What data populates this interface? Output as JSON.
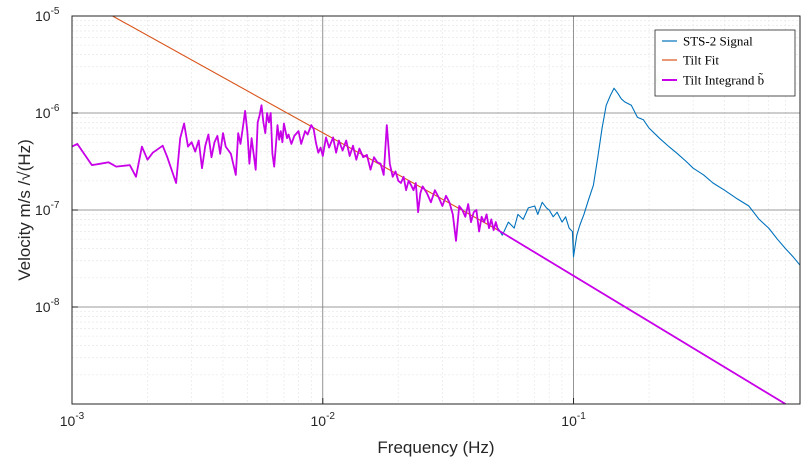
{
  "chart_data": {
    "type": "line",
    "xlabel": "Frequency (Hz)",
    "ylabel": "Velocity m/s /√(Hz)",
    "xscale": "log",
    "yscale": "log",
    "xlim": [
      0.001,
      0.8
    ],
    "ylim": [
      1e-09,
      1e-05
    ],
    "x_ticks": [
      {
        "value": 0.001,
        "base": "10",
        "exp": "-3"
      },
      {
        "value": 0.01,
        "base": "10",
        "exp": "-2"
      },
      {
        "value": 0.1,
        "base": "10",
        "exp": "-1"
      }
    ],
    "y_ticks": [
      {
        "value": 1e-08,
        "base": "10",
        "exp": "-8"
      },
      {
        "value": 1e-07,
        "base": "10",
        "exp": "-7"
      },
      {
        "value": 1e-06,
        "base": "10",
        "exp": "-6"
      },
      {
        "value": 1e-05,
        "base": "10",
        "exp": "-5"
      }
    ],
    "grid": true,
    "legend_position": "top-right",
    "series": [
      {
        "name": "STS-2 Signal",
        "color": "#0072BD",
        "points": [
          [
            0.05,
            6.5e-08
          ],
          [
            0.052,
            5.5e-08
          ],
          [
            0.055,
            7.5e-08
          ],
          [
            0.058,
            6.5e-08
          ],
          [
            0.06,
            9e-08
          ],
          [
            0.063,
            8e-08
          ],
          [
            0.066,
            1.05e-07
          ],
          [
            0.07,
            1.1e-07
          ],
          [
            0.072,
            9e-08
          ],
          [
            0.075,
            1.2e-07
          ],
          [
            0.078,
            1.05e-07
          ],
          [
            0.08,
            1e-07
          ],
          [
            0.083,
            8.5e-08
          ],
          [
            0.086,
            9.5e-08
          ],
          [
            0.09,
            7.5e-08
          ],
          [
            0.093,
            8.5e-08
          ],
          [
            0.096,
            6.5e-08
          ],
          [
            0.099,
            6e-08
          ],
          [
            0.1,
            3.3e-08
          ],
          [
            0.103,
            5.5e-08
          ],
          [
            0.106,
            7e-08
          ],
          [
            0.11,
            9e-08
          ],
          [
            0.115,
            1.3e-07
          ],
          [
            0.12,
            1.8e-07
          ],
          [
            0.125,
            3.5e-07
          ],
          [
            0.13,
            7e-07
          ],
          [
            0.135,
            1.2e-06
          ],
          [
            0.14,
            1.5e-06
          ],
          [
            0.145,
            1.8e-06
          ],
          [
            0.15,
            1.6e-06
          ],
          [
            0.155,
            1.4e-06
          ],
          [
            0.16,
            1.3e-06
          ],
          [
            0.17,
            1.2e-06
          ],
          [
            0.18,
            9e-07
          ],
          [
            0.19,
            8.5e-07
          ],
          [
            0.2,
            7e-07
          ],
          [
            0.22,
            5.5e-07
          ],
          [
            0.24,
            4.5e-07
          ],
          [
            0.26,
            3.8e-07
          ],
          [
            0.28,
            3.2e-07
          ],
          [
            0.3,
            2.7e-07
          ],
          [
            0.33,
            2.3e-07
          ],
          [
            0.36,
            1.9e-07
          ],
          [
            0.4,
            1.6e-07
          ],
          [
            0.45,
            1.3e-07
          ],
          [
            0.5,
            1.1e-07
          ],
          [
            0.55,
            8e-08
          ],
          [
            0.6,
            6.5e-08
          ],
          [
            0.65,
            5e-08
          ],
          [
            0.7,
            4e-08
          ],
          [
            0.75,
            3.3e-08
          ],
          [
            0.8,
            2.7e-08
          ]
        ]
      },
      {
        "name": "Tilt Fit",
        "color": "#D95319",
        "points": [
          [
            0.00145,
            1e-05
          ],
          [
            0.05,
            6.2e-08
          ]
        ]
      },
      {
        "name": "Tilt Integrand b̃",
        "color": "#C800E8",
        "points": [
          [
            0.001,
            4.5e-07
          ],
          [
            0.00105,
            4.8e-07
          ],
          [
            0.0012,
            2.9e-07
          ],
          [
            0.0013,
            3e-07
          ],
          [
            0.0014,
            3.1e-07
          ],
          [
            0.0015,
            2.8e-07
          ],
          [
            0.0017,
            2.9e-07
          ],
          [
            0.0018,
            2.2e-07
          ],
          [
            0.0019,
            4.5e-07
          ],
          [
            0.002,
            3.3e-07
          ],
          [
            0.0021,
            3.9e-07
          ],
          [
            0.0023,
            4.6e-07
          ],
          [
            0.0024,
            3.5e-07
          ],
          [
            0.0026,
            1.9e-07
          ],
          [
            0.0027,
            5.5e-07
          ],
          [
            0.0028,
            7.8e-07
          ],
          [
            0.0029,
            4.5e-07
          ],
          [
            0.003,
            5e-07
          ],
          [
            0.0031,
            4e-07
          ],
          [
            0.0032,
            5.2e-07
          ],
          [
            0.0033,
            2.7e-07
          ],
          [
            0.0034,
            4.6e-07
          ],
          [
            0.0035,
            6e-07
          ],
          [
            0.0036,
            3.5e-07
          ],
          [
            0.0037,
            5e-07
          ],
          [
            0.0038,
            5.8e-07
          ],
          [
            0.0039,
            3.8e-07
          ],
          [
            0.004,
            6.2e-07
          ],
          [
            0.0041,
            4.5e-07
          ],
          [
            0.0043,
            3.8e-07
          ],
          [
            0.0045,
            2.3e-07
          ],
          [
            0.0046,
            6.2e-07
          ],
          [
            0.0047,
            4.8e-07
          ],
          [
            0.0048,
            7e-07
          ],
          [
            0.0049,
            1.05e-06
          ],
          [
            0.005,
            6.5e-07
          ],
          [
            0.0051,
            3e-07
          ],
          [
            0.0052,
            5.5e-07
          ],
          [
            0.0054,
            2.6e-07
          ],
          [
            0.0055,
            8e-07
          ],
          [
            0.0056,
            9.5e-07
          ],
          [
            0.0057,
            1.2e-06
          ],
          [
            0.0058,
            8e-07
          ],
          [
            0.0059,
            6.2e-07
          ],
          [
            0.006,
            1e-06
          ],
          [
            0.0061,
            8e-07
          ],
          [
            0.0062,
            1e-06
          ],
          [
            0.0063,
            3.8e-07
          ],
          [
            0.0064,
            2.8e-07
          ],
          [
            0.0066,
            7.5e-07
          ],
          [
            0.0067,
            5.3e-07
          ],
          [
            0.0068,
            6.5e-07
          ],
          [
            0.0069,
            5e-07
          ],
          [
            0.007,
            7.8e-07
          ],
          [
            0.0072,
            5.5e-07
          ],
          [
            0.0073,
            6e-07
          ],
          [
            0.0075,
            4.8e-07
          ],
          [
            0.0077,
            5.8e-07
          ],
          [
            0.008,
            6.5e-07
          ],
          [
            0.0082,
            4.8e-07
          ],
          [
            0.0085,
            6.5e-07
          ],
          [
            0.0087,
            6e-07
          ],
          [
            0.009,
            7.5e-07
          ],
          [
            0.0092,
            6.8e-07
          ],
          [
            0.0094,
            4.9e-07
          ],
          [
            0.0096,
            3.9e-07
          ],
          [
            0.0098,
            4.4e-07
          ],
          [
            0.01,
            3.6e-07
          ],
          [
            0.0103,
            5.6e-07
          ],
          [
            0.0106,
            4.4e-07
          ],
          [
            0.011,
            5.6e-07
          ],
          [
            0.0113,
            3.9e-07
          ],
          [
            0.0116,
            5.2e-07
          ],
          [
            0.012,
            4.1e-07
          ],
          [
            0.0124,
            5.2e-07
          ],
          [
            0.0128,
            3.6e-07
          ],
          [
            0.0132,
            4.6e-07
          ],
          [
            0.0136,
            3.3e-07
          ],
          [
            0.014,
            4.3e-07
          ],
          [
            0.0145,
            3.5e-07
          ],
          [
            0.015,
            3.7e-07
          ],
          [
            0.0155,
            2.6e-07
          ],
          [
            0.016,
            3.5e-07
          ],
          [
            0.0165,
            3.1e-07
          ],
          [
            0.017,
            3e-07
          ],
          [
            0.0175,
            2.3e-07
          ],
          [
            0.018,
            7.5e-07
          ],
          [
            0.0185,
            3e-07
          ],
          [
            0.019,
            2.2e-07
          ],
          [
            0.0195,
            2.5e-07
          ],
          [
            0.02,
            2e-07
          ],
          [
            0.0205,
            1.9e-07
          ],
          [
            0.021,
            2.2e-07
          ],
          [
            0.0215,
            1.6e-07
          ],
          [
            0.022,
            2e-07
          ],
          [
            0.0225,
            1.8e-07
          ],
          [
            0.023,
            1.6e-07
          ],
          [
            0.0235,
            1.9e-07
          ],
          [
            0.024,
            9.5e-08
          ],
          [
            0.0245,
            1.5e-07
          ],
          [
            0.025,
            1.75e-07
          ],
          [
            0.026,
            1.5e-07
          ],
          [
            0.027,
            1.2e-07
          ],
          [
            0.028,
            1.6e-07
          ],
          [
            0.029,
            1.35e-07
          ],
          [
            0.03,
            1.1e-07
          ],
          [
            0.031,
            1.4e-07
          ],
          [
            0.032,
            1.2e-07
          ],
          [
            0.033,
            9e-08
          ],
          [
            0.034,
            4.8e-08
          ],
          [
            0.035,
            1.1e-07
          ],
          [
            0.036,
            1e-07
          ],
          [
            0.037,
            8.5e-08
          ],
          [
            0.038,
            1.15e-07
          ],
          [
            0.039,
            7.5e-08
          ],
          [
            0.04,
            9.5e-08
          ],
          [
            0.041,
            1e-07
          ],
          [
            0.042,
            6e-08
          ],
          [
            0.043,
            8.5e-08
          ],
          [
            0.044,
            7.5e-08
          ],
          [
            0.045,
            9e-08
          ],
          [
            0.046,
            6.5e-08
          ],
          [
            0.047,
            8e-08
          ],
          [
            0.048,
            6.2e-08
          ],
          [
            0.049,
            7.5e-08
          ],
          [
            0.05,
            6.2e-08
          ],
          [
            0.7,
            1e-09
          ]
        ]
      }
    ]
  }
}
